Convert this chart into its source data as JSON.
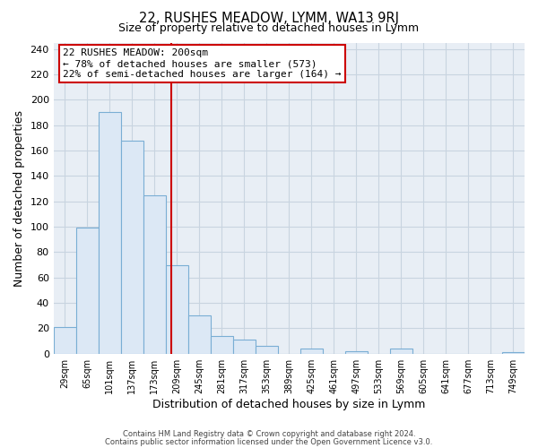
{
  "title_line1": "22, RUSHES MEADOW, LYMM, WA13 9RJ",
  "title_line2": "Size of property relative to detached houses in Lymm",
  "xlabel": "Distribution of detached houses by size in Lymm",
  "ylabel": "Number of detached properties",
  "bin_labels": [
    "29sqm",
    "65sqm",
    "101sqm",
    "137sqm",
    "173sqm",
    "209sqm",
    "245sqm",
    "281sqm",
    "317sqm",
    "353sqm",
    "389sqm",
    "425sqm",
    "461sqm",
    "497sqm",
    "533sqm",
    "569sqm",
    "605sqm",
    "641sqm",
    "677sqm",
    "713sqm",
    "749sqm"
  ],
  "bar_values": [
    21,
    99,
    190,
    168,
    125,
    70,
    30,
    14,
    11,
    6,
    0,
    4,
    0,
    2,
    0,
    4,
    0,
    0,
    0,
    0,
    1
  ],
  "bar_color": "#dce8f5",
  "bar_edge_color": "#7aaed4",
  "marker_label": "22 RUSHES MEADOW: 200sqm",
  "annotation_line1": "← 78% of detached houses are smaller (573)",
  "annotation_line2": "22% of semi-detached houses are larger (164) →",
  "annotation_box_edge_color": "#cc0000",
  "vline_color": "#cc0000",
  "ylim": [
    0,
    245
  ],
  "yticks": [
    0,
    20,
    40,
    60,
    80,
    100,
    120,
    140,
    160,
    180,
    200,
    220,
    240
  ],
  "footer_line1": "Contains HM Land Registry data © Crown copyright and database right 2024.",
  "footer_line2": "Contains public sector information licensed under the Open Government Licence v3.0.",
  "background_color": "#ffffff",
  "plot_background_color": "#e8eef5",
  "grid_color": "#c8d4e0"
}
